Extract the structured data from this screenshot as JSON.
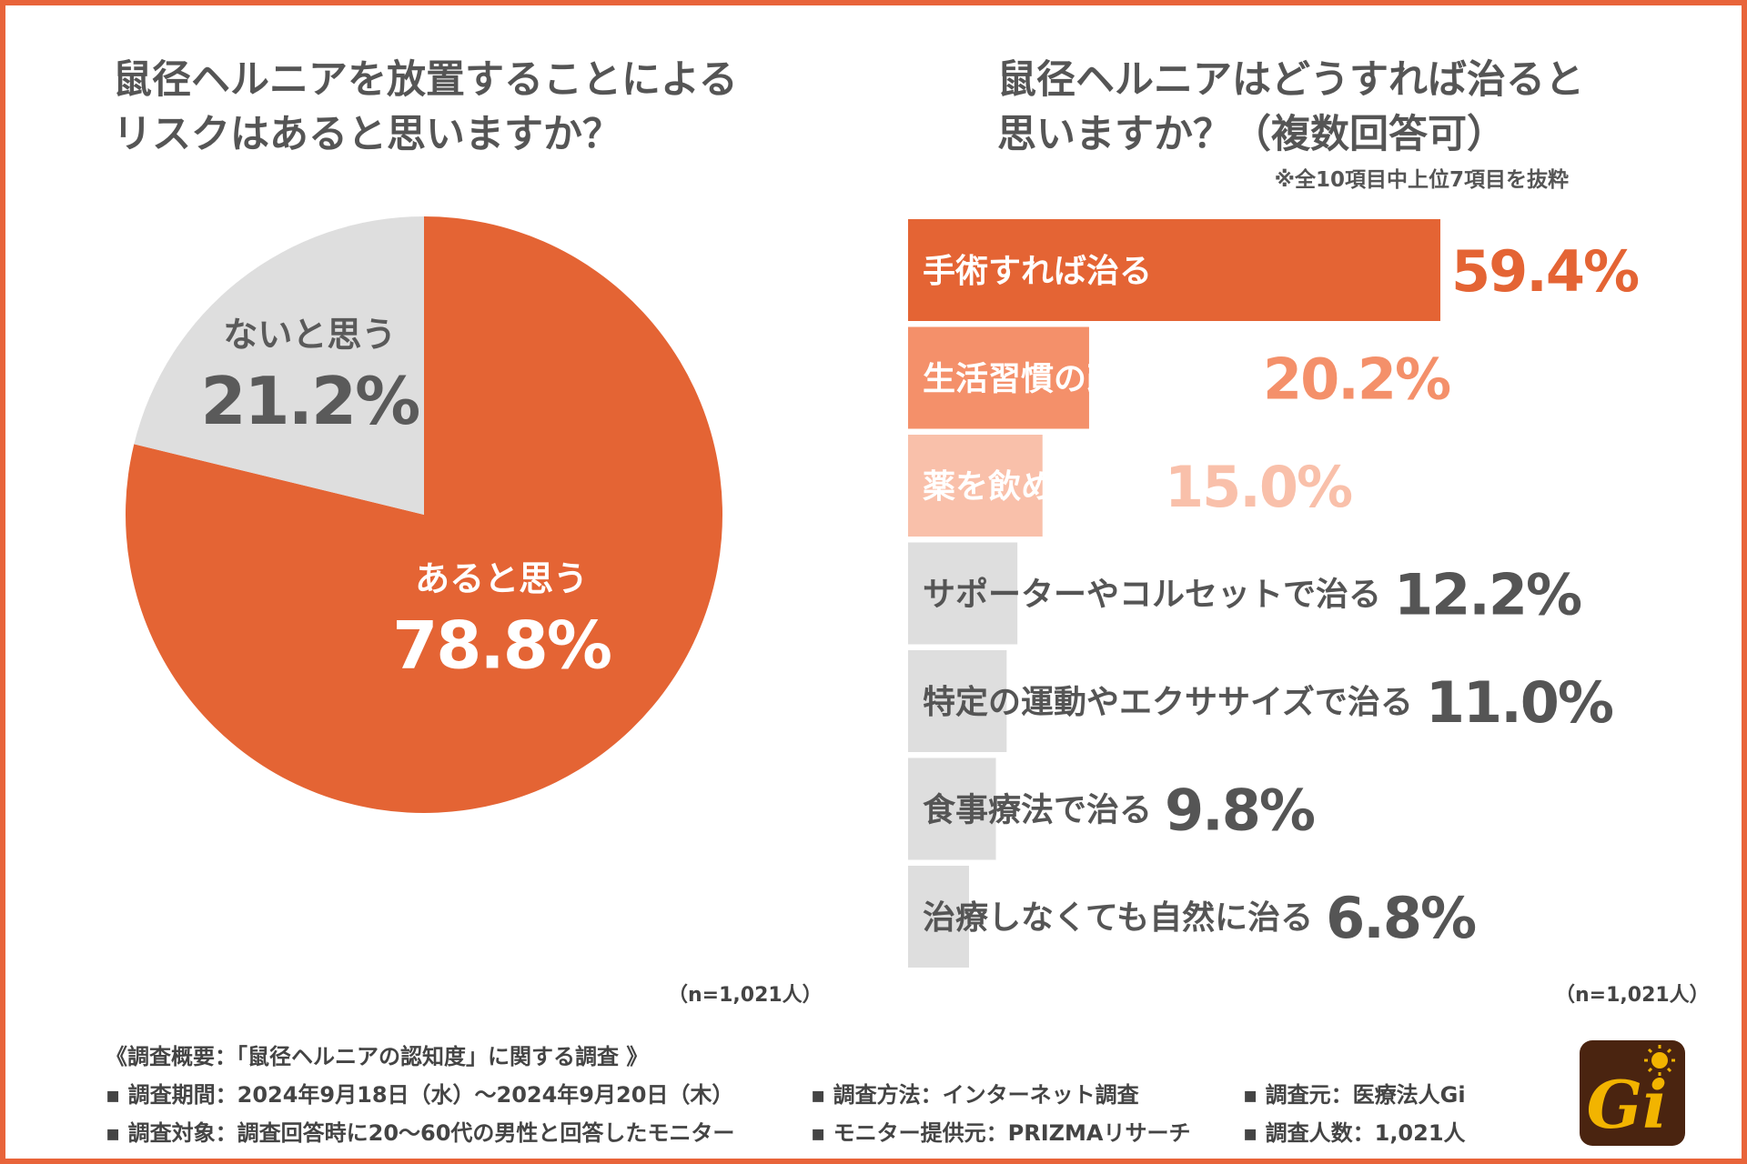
{
  "left_chart": {
    "title_line1": "鼠径ヘルニアを放置することによる",
    "title_line2": "リスクはあると思いますか？",
    "n_note": "（n=1,021人）"
  },
  "right_chart": {
    "title_line1": "鼠径ヘルニアはどうすれば治ると",
    "title_line2": "思いますか？（複数回答可）",
    "note": "※全10項目中上位7項目を抜粋",
    "n_note": "（n=1,021人）"
  },
  "chart_data": [
    {
      "type": "pie",
      "title": "鼠径ヘルニアを放置することによるリスクはあると思いますか？",
      "categories": [
        "あると思う",
        "ないと思う"
      ],
      "values": [
        78.8,
        21.2
      ],
      "value_labels": [
        "78.8%",
        "21.2%"
      ],
      "colors": [
        "#e46434",
        "#dedede"
      ]
    },
    {
      "type": "bar",
      "orientation": "horizontal",
      "title": "鼠径ヘルニアはどうすれば治ると思いますか？（複数回答可）",
      "categories": [
        "手術すれば治る",
        "生活習慣の改善で治る",
        "薬を飲めば治る",
        "サポーターやコルセットで治る",
        "特定の運動やエクササイズで治る",
        "食事療法で治る",
        "治療しなくても自然に治る"
      ],
      "values": [
        59.4,
        20.2,
        15.0,
        12.2,
        11.0,
        9.8,
        6.8
      ],
      "value_labels": [
        "59.4%",
        "20.2%",
        "15.0%",
        "12.2%",
        "11.0%",
        "9.8%",
        "6.8%"
      ],
      "bar_colors": [
        "#e46434",
        "#f4906a",
        "#f9c0aa",
        "#dedede",
        "#dedede",
        "#dedede",
        "#dedede"
      ],
      "value_colors": [
        "#e46434",
        "#f4906a",
        "#f9c0aa",
        "#555555",
        "#555555",
        "#555555",
        "#555555"
      ],
      "label_colors": [
        "#ffffff",
        "#ffffff",
        "#ffffff",
        "#555555",
        "#555555",
        "#555555",
        "#555555"
      ],
      "xlim": [
        0,
        59.4
      ]
    }
  ],
  "survey": {
    "heading": "《調査概要：「鼠径ヘルニアの認知度」に関する調査 》",
    "period": "▪ 調査期間：2024年9月18日（水）～2024年9月20日（木）",
    "method": "▪ 調査方法：インターネット調査",
    "source": "▪ 調査元：医療法人Gi",
    "target": "▪ 調査対象：調査回答時に20～60代の男性と回答したモニター",
    "provider": "▪ モニター提供元：PRIZMAリサーチ",
    "count": "▪ 調査人数：1,021人"
  },
  "logo": {
    "text": "Gi",
    "colors": {
      "bg": "#4a2410",
      "letter": "#f2b400"
    }
  }
}
